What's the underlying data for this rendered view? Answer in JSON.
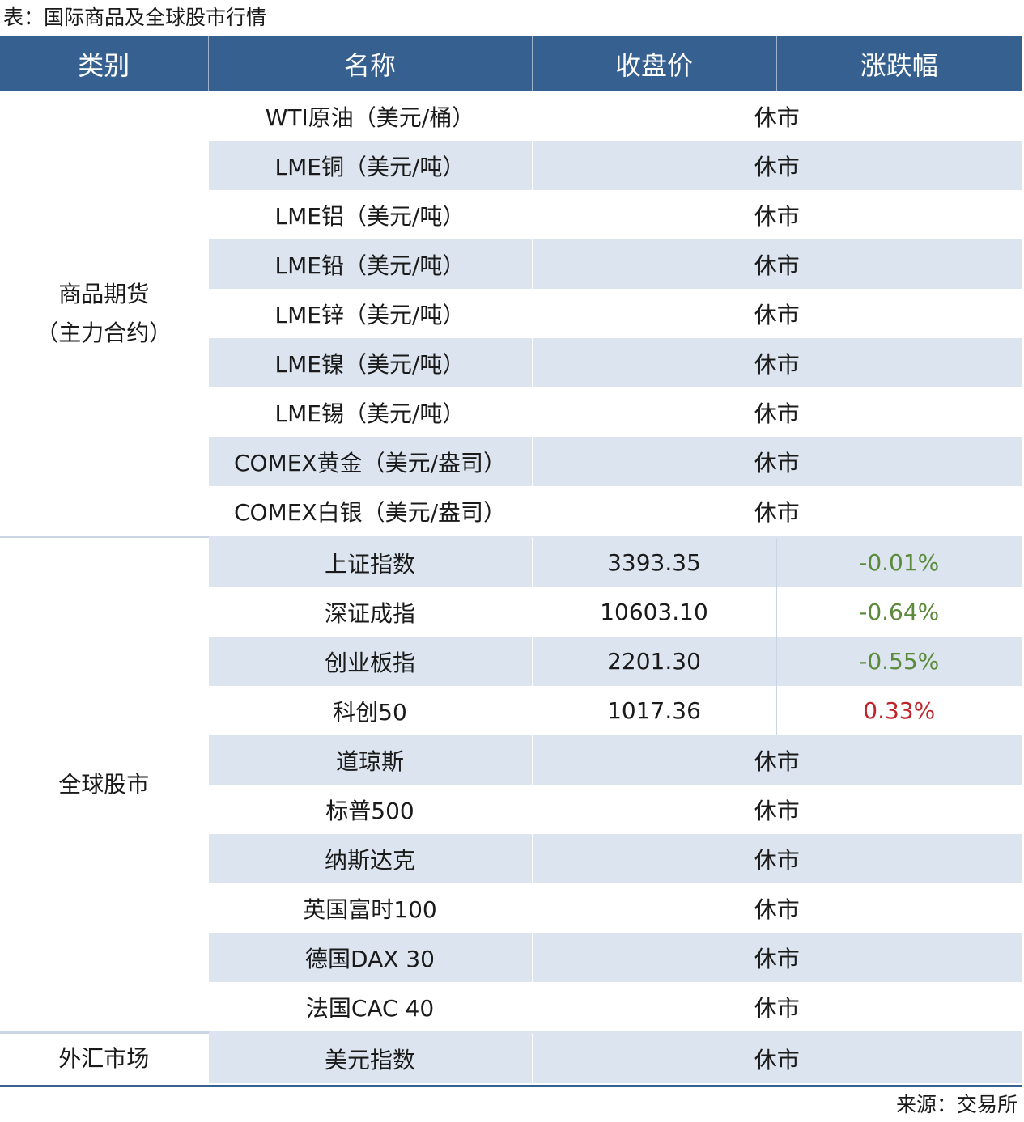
{
  "caption": "表：国际商品及全球股市行情",
  "source": "来源：交易所",
  "headers": [
    "类别",
    "名称",
    "收盘价",
    "涨跌幅"
  ],
  "sections": [
    {
      "category_line1": "商品期货",
      "category_line2": "（主力合约）",
      "rows": [
        {
          "name": "WTI原油（美元/桶）",
          "status": "休市"
        },
        {
          "name": "LME铜（美元/吨）",
          "status": "休市"
        },
        {
          "name": "LME铝（美元/吨）",
          "status": "休市"
        },
        {
          "name": "LME铅（美元/吨）",
          "status": "休市"
        },
        {
          "name": "LME锌（美元/吨）",
          "status": "休市"
        },
        {
          "name": "LME镍（美元/吨）",
          "status": "休市"
        },
        {
          "name": "LME锡（美元/吨）",
          "status": "休市"
        },
        {
          "name": "COMEX黄金（美元/盎司）",
          "status": "休市"
        },
        {
          "name": "COMEX白银（美元/盎司）",
          "status": "休市"
        }
      ]
    },
    {
      "category_line1": "全球股市",
      "rows": [
        {
          "name": "上证指数",
          "close": "3393.35",
          "change": "-0.01%"
        },
        {
          "name": "深证成指",
          "close": "10603.10",
          "change": "-0.64%"
        },
        {
          "name": "创业板指",
          "close": "2201.30",
          "change": "-0.55%"
        },
        {
          "name": "科创50",
          "close": "1017.36",
          "change": "0.33%"
        },
        {
          "name": "道琼斯",
          "status": "休市"
        },
        {
          "name": "标普500",
          "status": "休市"
        },
        {
          "name": "纳斯达克",
          "status": "休市"
        },
        {
          "name": "英国富时100",
          "status": "休市"
        },
        {
          "name": "德国DAX 30",
          "status": "休市"
        },
        {
          "name": "法国CAC 40",
          "status": "休市"
        }
      ]
    },
    {
      "category_line1": "外汇市场",
      "rows": [
        {
          "name": "美元指数",
          "status": "休市"
        }
      ]
    }
  ],
  "colors": {
    "header_bg": "#36608f",
    "stripe": "#dce5ef",
    "negative": "#5a8a3a",
    "positive": "#c0242a"
  }
}
